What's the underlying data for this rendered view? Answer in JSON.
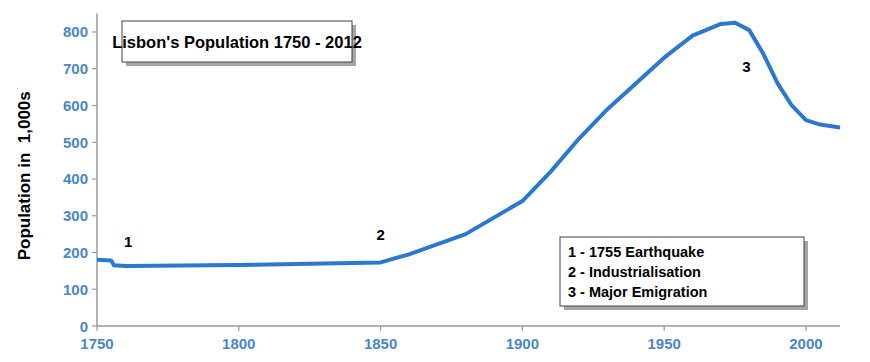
{
  "chart_data": {
    "type": "line",
    "title": "Lisbon's Population 1750 - 2012",
    "y_label": "Population in  1,000s",
    "x": [
      1750,
      1755,
      1756,
      1760,
      1800,
      1850,
      1860,
      1880,
      1900,
      1910,
      1920,
      1930,
      1940,
      1950,
      1960,
      1970,
      1975,
      1980,
      1985,
      1990,
      1995,
      2000,
      2005,
      2012
    ],
    "values": [
      180,
      178,
      165,
      163,
      166,
      173,
      195,
      250,
      340,
      420,
      510,
      590,
      660,
      730,
      790,
      822,
      825,
      805,
      740,
      660,
      600,
      560,
      548,
      540
    ],
    "color": "#2b78cf",
    "xlim": [
      1750,
      2012
    ],
    "xticks": [
      1750,
      1800,
      1850,
      1900,
      1950,
      2000
    ],
    "ylim": [
      0,
      850
    ],
    "yticks": [
      0,
      100,
      200,
      300,
      400,
      500,
      600,
      700,
      800
    ],
    "grid": false,
    "annotations": [
      {
        "text": "1",
        "x": 1761,
        "y": 215
      },
      {
        "text": "2",
        "x": 1850,
        "y": 235
      },
      {
        "text": "3",
        "x": 1979,
        "y": 690
      }
    ],
    "notes": [
      "1 - 1755 Earthquake",
      "2 - Industrialisation",
      "3 - Major Emigration"
    ]
  }
}
